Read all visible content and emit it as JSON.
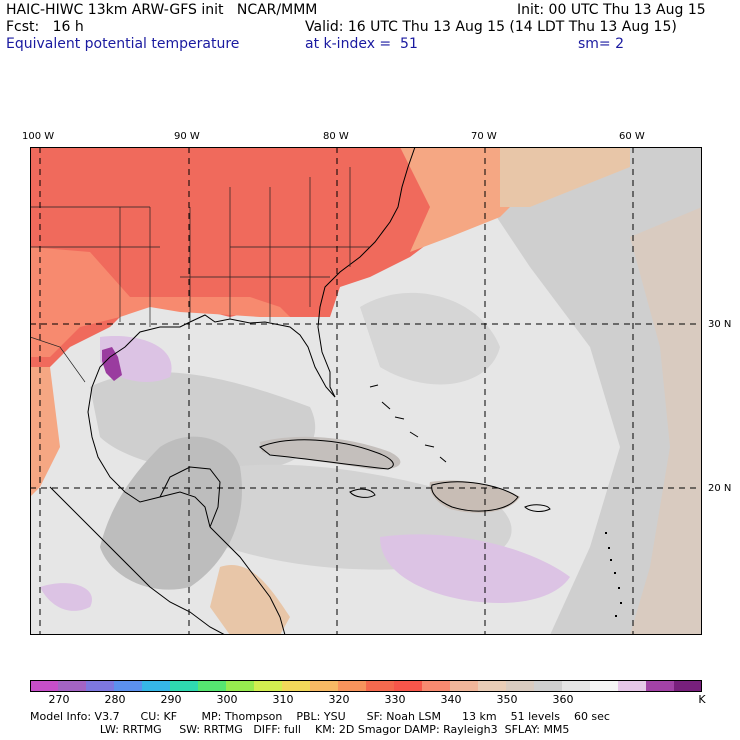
{
  "header": {
    "title": "HAIC-HIWC 13km ARW-GFS init   NCAR/MMM",
    "init": "Init: 00 UTC Thu 13 Aug 15",
    "fcst": "Fcst:   16 h",
    "valid": "Valid: 16 UTC Thu 13 Aug 15 (14 LDT Thu 13 Aug 15)",
    "field": "Equivalent potential temperature",
    "level": "at k-index =  51",
    "smooth": "sm= 2"
  },
  "map": {
    "lon_labels": [
      "100 W",
      "90 W",
      "80 W",
      "70 W",
      "60 W"
    ],
    "lat_labels": [
      "30 N",
      "20 N"
    ],
    "land_labels": [],
    "colors": {
      "warm": "#f06a5c",
      "warm2": "#f78a6f",
      "warm3": "#f5a783",
      "tan": "#e8c6a8",
      "gray_dark": "#bdbdbd",
      "gray": "#cfcfcf",
      "gray_light": "#e6e6e6",
      "lavender": "#dcc3e4",
      "purple": "#9a3c9f",
      "white": "#f2f2f2"
    }
  },
  "colorbar": {
    "colors": [
      "#c74fc9",
      "#a464c4",
      "#7e78e0",
      "#5c91ee",
      "#36b7e7",
      "#2fd9b0",
      "#56e671",
      "#97ec4f",
      "#d2ef50",
      "#f2d85a",
      "#f7b964",
      "#f7935c",
      "#f5694e",
      "#f7564a",
      "#f78a70",
      "#f0b69a",
      "#e9cdb7",
      "#d9cbc0",
      "#cfcfcf",
      "#e4e4e4",
      "#f5f5f5",
      "#e6c7e8",
      "#a242a6",
      "#78207c"
    ],
    "labels": [
      "270",
      "280",
      "290",
      "300",
      "310",
      "320",
      "330",
      "340",
      "350",
      "360",
      "K"
    ]
  },
  "model_info": {
    "line1": "Model Info: V3.7      CU: KF       MP: Thompson    PBL: YSU      SF: Noah LSM      13 km    51 levels    60 sec",
    "line2": "                    LW: RRTMG     SW: RRTMG   DIFF: full    KM: 2D Smagor DAMP: Rayleigh3  SFLAY: MM5"
  }
}
